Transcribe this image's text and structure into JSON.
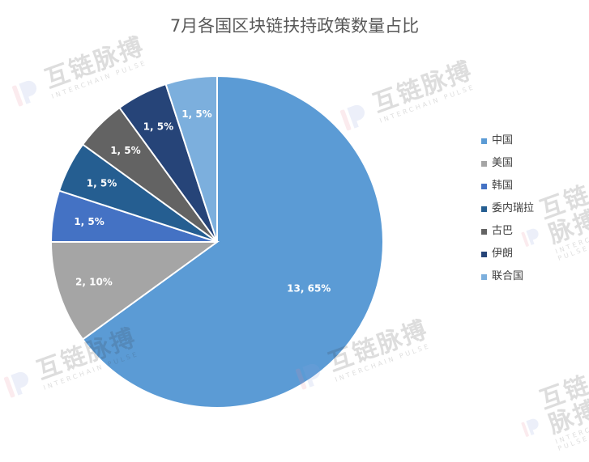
{
  "chart_data": {
    "type": "pie",
    "title": "7月各国区块链扶持政策数量占比",
    "slices": [
      {
        "name": "中国",
        "value": 13,
        "label": "13, 65%",
        "color": "#5b9bd5",
        "label_color": "#ffffff"
      },
      {
        "name": "美国",
        "value": 2,
        "label": "2, 10%",
        "color": "#a5a5a5",
        "label_color": "#ffffff"
      },
      {
        "name": "韩国",
        "value": 1,
        "label": "1, 5%",
        "color": "#4472c4",
        "label_color": "#ffffff"
      },
      {
        "name": "委内瑞拉",
        "value": 1,
        "label": "1, 5%",
        "color": "#255e91",
        "label_color": "#ffffff"
      },
      {
        "name": "古巴",
        "value": 1,
        "label": "1, 5%",
        "color": "#636363",
        "label_color": "#ffffff"
      },
      {
        "name": "伊朗",
        "value": 1,
        "label": "1, 5%",
        "color": "#264478",
        "label_color": "#ffffff"
      },
      {
        "name": "联合国",
        "value": 1,
        "label": "1, 5%",
        "color": "#7cafdd",
        "label_color": "#ffffff"
      }
    ],
    "start_angle_deg": 0,
    "direction": "clockwise",
    "legend_position": "right"
  },
  "watermark": {
    "text": "互链脉搏",
    "subtext": "INTERCHAIN PULSE",
    "logo_colors": [
      "#e8869b",
      "#8da2e0"
    ]
  }
}
